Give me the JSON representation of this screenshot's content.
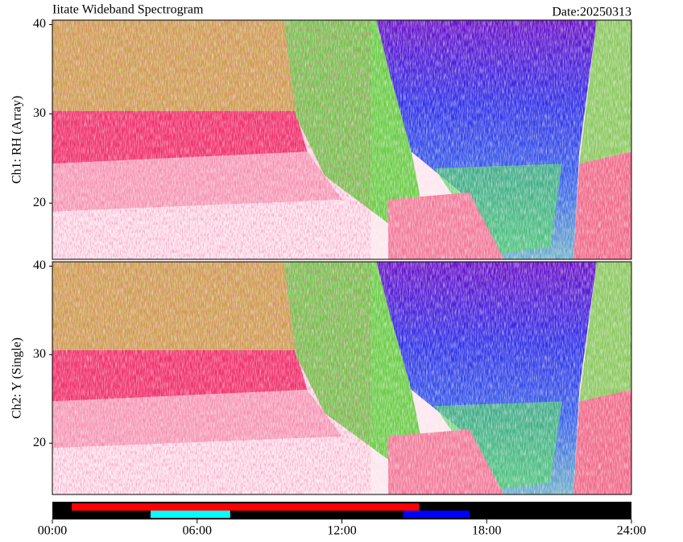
{
  "chart_data": [
    {
      "type": "spectrogram",
      "title": "Iitate Wideband Spectrogram",
      "date": "Date:20250313",
      "ylabel": "Ch1: RH (Array)",
      "ylim": [
        13.7,
        40.5
      ],
      "yticks": [
        20,
        30,
        40
      ]
    },
    {
      "type": "spectrogram",
      "ylabel": "Ch2: Y (Single)",
      "ylim": [
        14.2,
        40.5
      ],
      "yticks": [
        20,
        30,
        40
      ],
      "xlim": [
        0,
        24
      ],
      "xticks": [
        {
          "value": 0,
          "label": "00:00"
        },
        {
          "value": 6,
          "label": "06:00"
        },
        {
          "value": 12,
          "label": "12:00"
        },
        {
          "value": 18,
          "label": "18:00"
        },
        {
          "value": 24,
          "label": "24:00"
        }
      ],
      "status_bars": [
        {
          "color": "#ff0000",
          "start": 0.8,
          "end": 15.2
        },
        {
          "color": "#00ffff",
          "start": 4.07,
          "end": 7.37
        },
        {
          "color": "#0000ff",
          "start": 14.53,
          "end": 17.3
        }
      ]
    }
  ]
}
